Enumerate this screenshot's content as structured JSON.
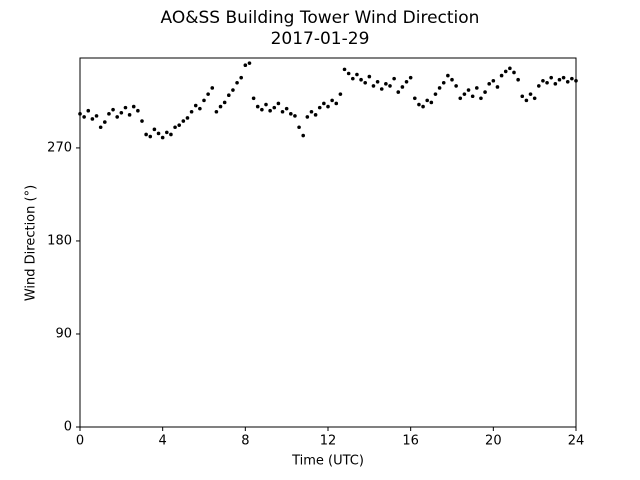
{
  "chart_data": {
    "type": "scatter",
    "title": "AO&SS Building Tower Wind Direction",
    "subtitle": "2017-01-29",
    "x_label": "Time (UTC)",
    "y_label": "Wind Direction (°)",
    "color": "#000000",
    "xlim": [
      0,
      24
    ],
    "xticks": [
      0,
      4,
      8,
      12,
      16,
      20,
      24
    ],
    "ylim": [
      0,
      357
    ],
    "yticks": [
      0,
      90,
      180,
      270
    ],
    "x": [
      0,
      0.2,
      0.4,
      0.6,
      0.8,
      1.0,
      1.2,
      1.4,
      1.6,
      1.8,
      2.0,
      2.2,
      2.4,
      2.6,
      2.8,
      3.0,
      3.2,
      3.4,
      3.6,
      3.8,
      4.0,
      4.2,
      4.4,
      4.6,
      4.8,
      5.0,
      5.2,
      5.4,
      5.6,
      5.8,
      6.0,
      6.2,
      6.4,
      6.6,
      6.8,
      7.0,
      7.2,
      7.4,
      7.6,
      7.8,
      8.0,
      8.2,
      8.4,
      8.6,
      8.8,
      9.0,
      9.2,
      9.4,
      9.6,
      9.8,
      10.0,
      10.2,
      10.4,
      10.6,
      10.8,
      11.0,
      11.2,
      11.4,
      11.6,
      11.8,
      12.0,
      12.2,
      12.4,
      12.6,
      12.8,
      13.0,
      13.2,
      13.4,
      13.6,
      13.8,
      14.0,
      14.2,
      14.4,
      14.6,
      14.8,
      15.0,
      15.2,
      15.4,
      15.6,
      15.8,
      16.0,
      16.2,
      16.4,
      16.6,
      16.8,
      17.0,
      17.2,
      17.4,
      17.6,
      17.8,
      18.0,
      18.2,
      18.4,
      18.6,
      18.8,
      19.0,
      19.2,
      19.4,
      19.6,
      19.8,
      20.0,
      20.2,
      20.4,
      20.6,
      20.8,
      21.0,
      21.2,
      21.4,
      21.6,
      21.8,
      22.0,
      22.2,
      22.4,
      22.6,
      22.8,
      23.0,
      23.2,
      23.4,
      23.6,
      23.8,
      24.0
    ],
    "values": [
      303,
      300,
      306,
      298,
      301,
      290,
      295,
      303,
      307,
      300,
      304,
      309,
      302,
      310,
      306,
      296,
      283,
      281,
      288,
      284,
      280,
      285,
      283,
      290,
      292,
      296,
      299,
      305,
      311,
      308,
      316,
      322,
      328,
      305,
      310,
      314,
      321,
      326,
      333,
      338,
      350,
      352,
      318,
      310,
      307,
      312,
      306,
      309,
      313,
      305,
      308,
      303,
      301,
      290,
      282,
      300,
      305,
      302,
      309,
      313,
      310,
      316,
      313,
      322,
      346,
      342,
      337,
      341,
      336,
      333,
      339,
      330,
      334,
      327,
      332,
      330,
      337,
      324,
      329,
      334,
      338,
      318,
      312,
      310,
      316,
      314,
      322,
      328,
      333,
      340,
      336,
      330,
      318,
      322,
      326,
      320,
      328,
      318,
      324,
      332,
      335,
      329,
      340,
      344,
      347,
      343,
      336,
      320,
      316,
      322,
      318,
      330,
      335,
      333,
      338,
      332,
      336,
      338,
      334,
      337,
      335
    ]
  }
}
